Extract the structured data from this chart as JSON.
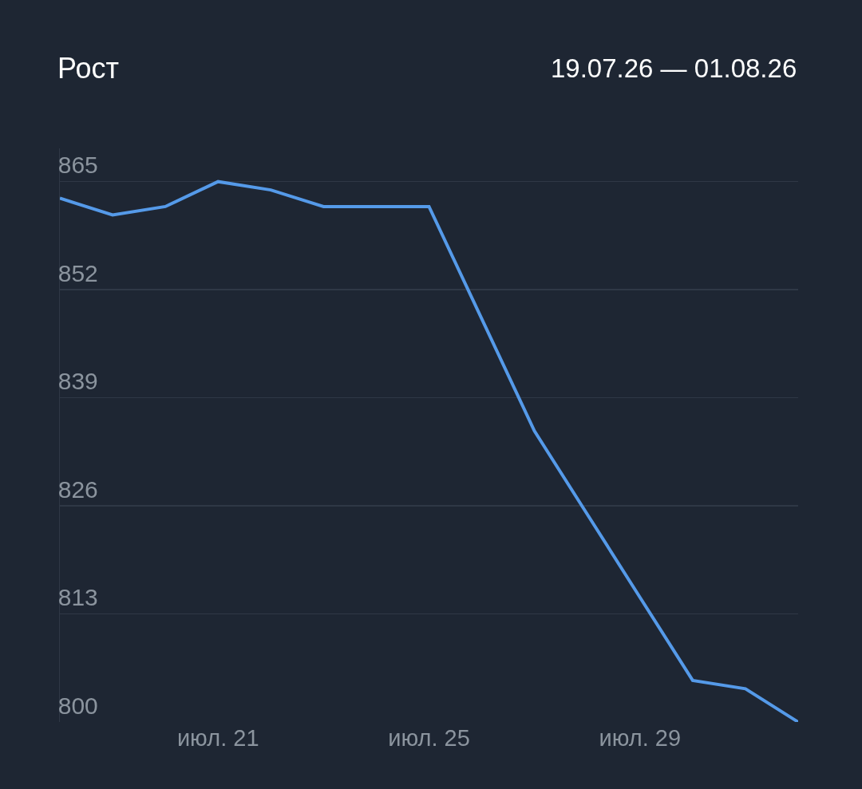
{
  "chart_data": {
    "type": "line",
    "title": "Рост",
    "subtitle": "19.07.26 — 01.08.26",
    "x": [
      "--07-18",
      "--07-19",
      "--07-20",
      "--07-21",
      "--07-22",
      "--07-23",
      "--07-24",
      "--07-25",
      "--07-26",
      "--07-27",
      "--07-28",
      "--07-29",
      "--07-30",
      "--07-31",
      "--08-01"
    ],
    "series": [
      {
        "color": "#559ae9",
        "values": [
          863,
          861,
          862,
          865,
          864,
          862,
          862,
          862,
          848.5,
          835,
          825,
          815,
          805,
          804,
          800
        ]
      }
    ],
    "xlim": [
      "--07-18",
      "--08-01"
    ],
    "xticks": [
      {
        "value": "--07-21",
        "label": "июл. 21"
      },
      {
        "value": "--07-25",
        "label": "июл. 25"
      },
      {
        "value": "--07-29",
        "label": "июл. 29"
      }
    ],
    "ylim": [
      800,
      869
    ],
    "yticks": [
      800,
      813,
      826,
      839,
      852,
      865
    ],
    "grid": "y",
    "marker": "none",
    "line_style": "solid"
  }
}
